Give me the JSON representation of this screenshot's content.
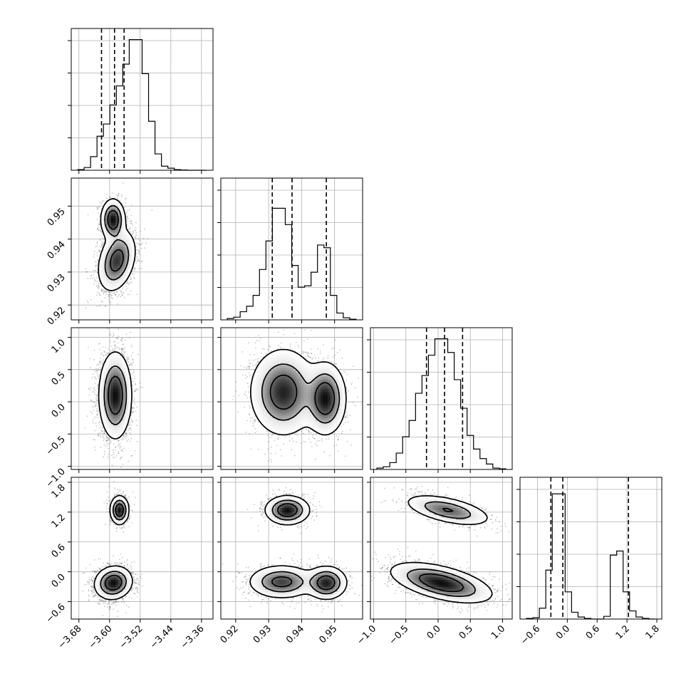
{
  "chart_data": {
    "type": "corner",
    "title": "",
    "parameters": [
      {
        "range": [
          -3.7,
          -3.33
        ],
        "ticks": [
          -3.68,
          -3.6,
          -3.52,
          -3.44,
          -3.36
        ],
        "tick_labels": [
          "−3.68",
          "−3.60",
          "−3.52",
          "−3.44",
          "−3.36"
        ],
        "quantiles": [
          -3.621,
          -3.587,
          -3.562
        ],
        "hist": [
          0.5,
          2,
          10,
          25,
          34,
          48,
          62,
          78,
          96,
          96,
          71,
          36,
          12,
          3,
          1.5,
          0.5,
          0.2,
          0,
          0,
          0
        ]
      },
      {
        "range": [
          0.9155,
          0.9585
        ],
        "ticks": [
          0.92,
          0.93,
          0.94,
          0.95
        ],
        "tick_labels": [
          "0.92",
          "0.93",
          "0.94",
          "0.95"
        ],
        "quantiles": [
          0.9311,
          0.9371,
          0.9475
        ],
        "hist": [
          1,
          2,
          6,
          10,
          18,
          37,
          58,
          82,
          82,
          70,
          40,
          24,
          25,
          35,
          55,
          53,
          18,
          5,
          1.5,
          0.5
        ]
      },
      {
        "range": [
          -1.05,
          1.15
        ],
        "ticks": [
          -1.0,
          -0.5,
          0.0,
          0.5,
          1.0
        ],
        "tick_labels": [
          "−1.0",
          "−0.5",
          "0.0",
          "0.5",
          "1.0"
        ],
        "quantiles": [
          -0.18,
          0.1,
          0.38
        ],
        "hist": [
          1,
          2,
          5,
          12,
          24,
          36,
          56,
          69,
          84,
          96,
          96,
          86,
          66,
          45,
          25,
          15,
          8,
          4,
          1,
          0.5
        ]
      },
      {
        "range": [
          -0.95,
          1.9
        ],
        "ticks": [
          -0.6,
          0.0,
          0.6,
          1.2,
          1.8
        ],
        "tick_labels": [
          "−0.6",
          "0.0",
          "0.6",
          "1.2",
          "1.8"
        ],
        "quantiles": [
          -0.33,
          -0.09,
          1.23
        ],
        "hist": [
          0.5,
          1,
          8,
          36,
          92,
          92,
          20,
          5,
          1.5,
          0.5,
          0,
          0,
          2,
          47,
          50,
          20,
          6,
          1.5,
          0.5,
          0
        ]
      }
    ],
    "pairs": [
      {
        "row": 1,
        "col": 0,
        "modes": [
          {
            "cx": -3.591,
            "cy": 0.9459,
            "sx": 0.014,
            "sy": 0.0028,
            "rho": 0.0,
            "w": 0.35
          },
          {
            "cx": -3.581,
            "cy": 0.9335,
            "sx": 0.022,
            "sy": 0.0042,
            "rho": 0.3,
            "w": 0.65
          }
        ]
      },
      {
        "row": 2,
        "col": 0,
        "modes": [
          {
            "cx": -3.585,
            "cy": 0.1,
            "sx": 0.019,
            "sy": 0.3,
            "rho": 0.0,
            "w": 1.0
          }
        ]
      },
      {
        "row": 2,
        "col": 1,
        "modes": [
          {
            "cx": 0.9345,
            "cy": 0.15,
            "sx": 0.0045,
            "sy": 0.3,
            "rho": 0.0,
            "w": 0.64
          },
          {
            "cx": 0.9472,
            "cy": 0.05,
            "sx": 0.0028,
            "sy": 0.25,
            "rho": 0.0,
            "w": 0.36
          }
        ]
      },
      {
        "row": 3,
        "col": 0,
        "modes": [
          {
            "cx": -3.574,
            "cy": 1.24,
            "sx": 0.011,
            "sy": 0.13,
            "rho": 0.0,
            "w": 0.3
          },
          {
            "cx": -3.59,
            "cy": -0.22,
            "sx": 0.022,
            "sy": 0.15,
            "rho": 0.1,
            "w": 0.7
          }
        ]
      },
      {
        "row": 3,
        "col": 1,
        "modes": [
          {
            "cx": 0.9357,
            "cy": 1.24,
            "sx": 0.003,
            "sy": 0.13,
            "rho": 0.0,
            "w": 0.3
          },
          {
            "cx": 0.934,
            "cy": -0.2,
            "sx": 0.0045,
            "sy": 0.15,
            "rho": 0.0,
            "w": 0.4
          },
          {
            "cx": 0.9475,
            "cy": -0.22,
            "sx": 0.0028,
            "sy": 0.15,
            "rho": 0.0,
            "w": 0.3
          }
        ]
      },
      {
        "row": 3,
        "col": 2,
        "modes": [
          {
            "cx": 0.15,
            "cy": 1.24,
            "sx": 0.3,
            "sy": 0.14,
            "rho": -0.55,
            "w": 0.3
          },
          {
            "cx": 0.05,
            "cy": -0.22,
            "sx": 0.35,
            "sy": 0.18,
            "rho": -0.55,
            "w": 0.7
          }
        ]
      }
    ],
    "grid": true,
    "levels": 3,
    "colors": {
      "line": "#000000",
      "grid": "#b0b0b0",
      "density": "#000000"
    }
  }
}
